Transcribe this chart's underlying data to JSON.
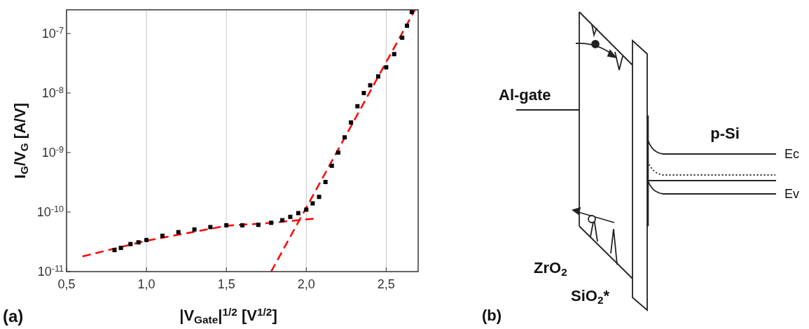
{
  "chart_data": [
    {
      "type": "scatter",
      "xlabel": "|V$_{Gate}$|$^{1/2}$ [V$^{1/2}$]",
      "ylabel": "I$_{G}$/V$_{G}$ [A/V]",
      "log": "y",
      "grid": "x",
      "xlim": [
        0.5,
        2.7
      ],
      "xticks": [
        {
          "value": 0.5,
          "label": "0,5"
        },
        {
          "value": 1.0,
          "label": "1,0"
        },
        {
          "value": 1.5,
          "label": "1,5"
        },
        {
          "value": 2.0,
          "label": "2,0"
        },
        {
          "value": 2.5,
          "label": "2,5"
        }
      ],
      "ylim": [
        1e-11,
        2.5e-07
      ],
      "yticks": [
        {
          "value": 1e-11,
          "label": "10$^{-11}$"
        },
        {
          "value": 1e-10,
          "label": "10$^{-10}$"
        },
        {
          "value": 1e-09,
          "label": "10$^{-9}$"
        },
        {
          "value": 1e-08,
          "label": "10$^{-8}$"
        },
        {
          "value": 1e-07,
          "label": "10$^{-7}$"
        }
      ],
      "annotations": [
        "(a)"
      ],
      "series": [
        {
          "type": "scatter",
          "marker": "square",
          "color": "#000000",
          "x": [
            0.8,
            0.84,
            0.9,
            0.95,
            1.0,
            1.1,
            1.2,
            1.3,
            1.4,
            1.5,
            1.6,
            1.7,
            1.78,
            1.85,
            1.9,
            1.95,
            2.0,
            2.04,
            2.08,
            2.12,
            2.16,
            2.2,
            2.24,
            2.28,
            2.32,
            2.36,
            2.4,
            2.45,
            2.5,
            2.55,
            2.6,
            2.63,
            2.66
          ],
          "values": [
            2.3e-11,
            2.5e-11,
            2.9e-11,
            3.1e-11,
            3.4e-11,
            4e-11,
            4.6e-11,
            5.1e-11,
            5.6e-11,
            6e-11,
            6e-11,
            6.1e-11,
            6.6e-11,
            7.3e-11,
            8.3e-11,
            9.6e-11,
            1.1e-10,
            1.4e-10,
            1.8e-10,
            3.2e-10,
            6e-10,
            1e-09,
            1.8e-09,
            3.2e-09,
            6e-09,
            1e-08,
            1.35e-08,
            1.9e-08,
            2.7e-08,
            4.5e-08,
            8.5e-08,
            1.35e-07,
            2.3e-07
          ]
        },
        {
          "type": "line",
          "color": "#ff0000",
          "line_style": "dashed",
          "x": [
            0.6,
            1.0,
            1.5,
            1.75,
            2.06
          ],
          "values": [
            1.8e-11,
            3.3e-11,
            5.9e-11,
            6.5e-11,
            7.8e-11
          ]
        },
        {
          "type": "line",
          "color": "#ff0000",
          "line_style": "dashed",
          "x": [
            1.78,
            2.68
          ],
          "values": [
            1e-11,
            2.5e-07
          ]
        }
      ]
    },
    {
      "type": "other",
      "annotations": [
        "Al-gate",
        "p-Si",
        "Ec",
        "Ev",
        "ZrO$_{2}$",
        "SiO$_{2}$*",
        "(b)"
      ]
    }
  ]
}
